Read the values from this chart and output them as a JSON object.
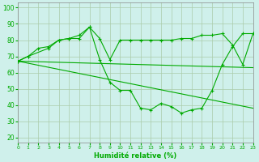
{
  "xlabel": "Humidité relative (%)",
  "bg_color": "#cff0eb",
  "grid_color": "#aaccaa",
  "line_color": "#00aa00",
  "x_ticks": [
    0,
    1,
    2,
    3,
    4,
    5,
    6,
    7,
    8,
    9,
    10,
    11,
    12,
    13,
    14,
    15,
    16,
    17,
    18,
    19,
    20,
    21,
    22,
    23
  ],
  "y_ticks": [
    20,
    30,
    40,
    50,
    60,
    70,
    80,
    90,
    100
  ],
  "xlim": [
    0,
    23
  ],
  "ylim": [
    17,
    103
  ],
  "series1_x": [
    0,
    1,
    2,
    3,
    4,
    5,
    6,
    7,
    8,
    9,
    10,
    11,
    12,
    13,
    14,
    15,
    16,
    17,
    18,
    19,
    20,
    21,
    22,
    23
  ],
  "series1_y": [
    67,
    70,
    75,
    76,
    80,
    81,
    83,
    88,
    81,
    68,
    80,
    80,
    80,
    80,
    80,
    80,
    81,
    81,
    83,
    83,
    84,
    77,
    65,
    84
  ],
  "series2_x": [
    0,
    1,
    3,
    4,
    5,
    6,
    7,
    8,
    9,
    10,
    11,
    12,
    13,
    14,
    15,
    16,
    17,
    18,
    19,
    20,
    21,
    22,
    23
  ],
  "series2_y": [
    67,
    70,
    75,
    80,
    81,
    81,
    88,
    68,
    54,
    49,
    49,
    38,
    37,
    41,
    39,
    35,
    37,
    38,
    49,
    65,
    76,
    84,
    84
  ],
  "trend1_x": [
    0,
    23
  ],
  "trend1_y": [
    67,
    38
  ],
  "trend2_x": [
    0,
    23
  ],
  "trend2_y": [
    67,
    63
  ]
}
